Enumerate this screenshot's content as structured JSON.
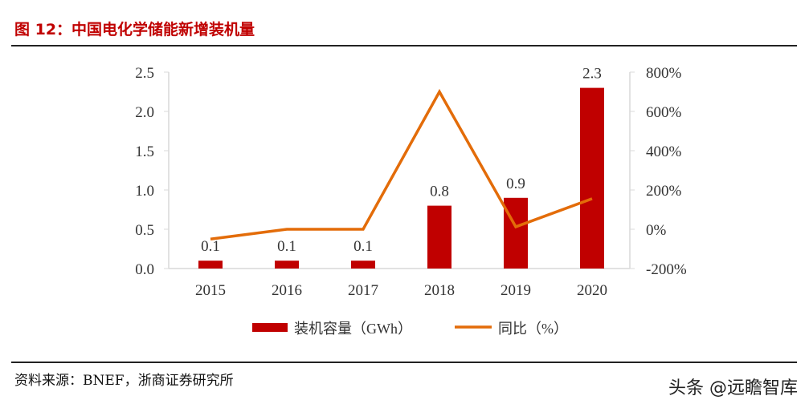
{
  "title": "图 12：中国电化学储能新增装机量",
  "source": "资料来源：BNEF，浙商证券研究所",
  "watermark": "头条 @远瞻智库",
  "chart_data": {
    "type": "bar+line",
    "categories": [
      "2015",
      "2016",
      "2017",
      "2018",
      "2019",
      "2020"
    ],
    "series": [
      {
        "name": "装机容量（GWh）",
        "type": "bar",
        "axis": "left",
        "color": "#c00000",
        "values": [
          0.1,
          0.1,
          0.1,
          0.8,
          0.9,
          2.3
        ],
        "labels": [
          "0.1",
          "0.1",
          "0.1",
          "0.8",
          "0.9",
          "2.3"
        ]
      },
      {
        "name": "同比（%）",
        "type": "line",
        "axis": "right",
        "color": "#e36c09",
        "values": [
          -50,
          0,
          0,
          700,
          12.5,
          155.6
        ]
      }
    ],
    "left_axis": {
      "ylim": [
        0,
        2.5
      ],
      "ticks": [
        "0.0",
        "0.5",
        "1.0",
        "1.5",
        "2.0",
        "2.5"
      ]
    },
    "right_axis": {
      "ylim": [
        -200,
        800
      ],
      "ticks": [
        "-200%",
        "0%",
        "200%",
        "400%",
        "600%",
        "800%"
      ]
    },
    "legend": "bottom",
    "grid": false
  }
}
